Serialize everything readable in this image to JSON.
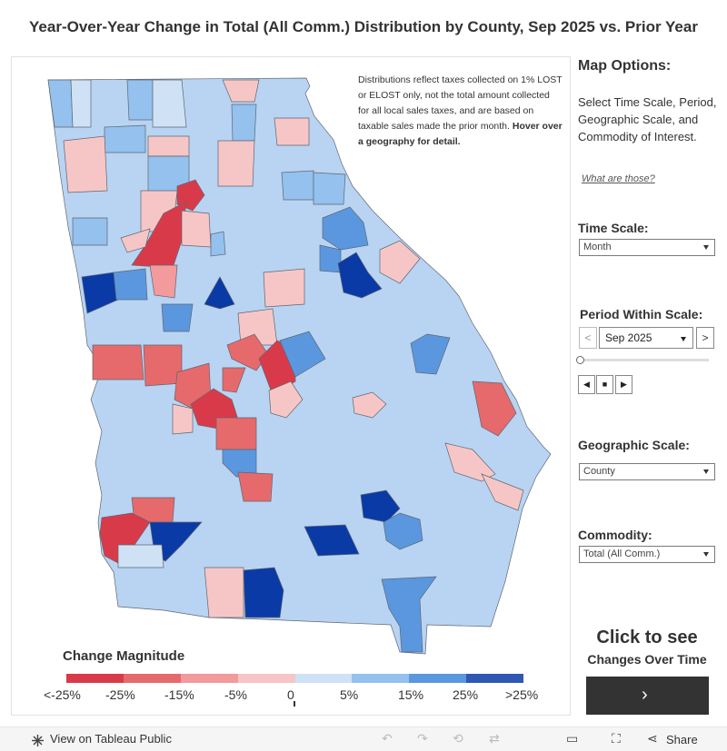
{
  "title": "Year-Over-Year Change in Total (All Comm.) Distribution by County, Sep 2025 vs. Prior Year",
  "map": {
    "note_main": "Distributions reflect taxes collected on 1% LOST or ELOST only, not the total amount collected for all local sales taxes, and are based on taxable sales made the prior month.",
    "note_bold": "Hover over a geography for detail.",
    "legend_title": "Change Magnitude",
    "legend_colors": [
      "#d93a4a",
      "#e66a6c",
      "#f39a9c",
      "#f6c6c6",
      "#cfe1f5",
      "#94c1ee",
      "#5b97df",
      "#2e58b3"
    ],
    "legend_labels": [
      "<-25%",
      "-25%",
      "-15%",
      "-5%",
      "0",
      "5%",
      "15%",
      "25%",
      ">25%"
    ],
    "palette": {
      "state_fill": "#b8d4f2",
      "border": "#5f6670",
      "red_strong": "#d93a4a",
      "red_mid": "#e66a6c",
      "pink": "#f6c6c6",
      "pale_blue": "#cfe1f5",
      "light_blue": "#94c1ee",
      "mid_blue": "#5b97df",
      "navy": "#0a3aa6"
    }
  },
  "panel": {
    "title": "Map Options:",
    "description": "Select Time Scale, Period, Geographic Scale, and Commodity of Interest.",
    "link": "What are those?",
    "time_scale_label": "Time Scale:",
    "time_scale_value": "Month",
    "period_label": "Period Within Scale:",
    "period_value": "Sep 2025",
    "prev_icon": "<",
    "next_icon": ">",
    "step_back_icon": "◀",
    "stop_icon": "■",
    "step_fwd_icon": "▶",
    "geo_scale_label": "Geographic Scale:",
    "geo_scale_value": "County",
    "commodity_label": "Commodity:",
    "commodity_value": "Total (All Comm.)",
    "cta_line1": "Click to see",
    "cta_line2": "Changes Over Time",
    "cta_arrow": "›"
  },
  "footer": {
    "view_text": "View on Tableau Public",
    "share_text": "Share"
  }
}
